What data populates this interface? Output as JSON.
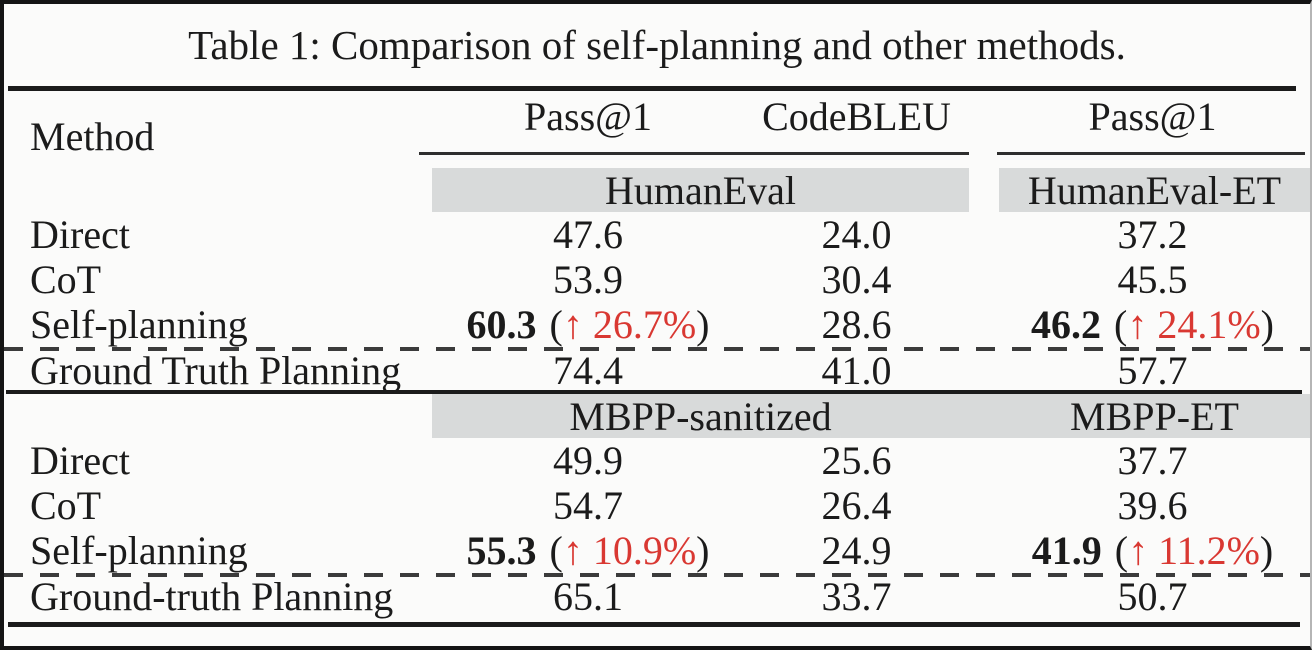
{
  "caption": "Table 1: Comparison of self-planning and other methods.",
  "header": {
    "method": "Method",
    "metric1": "Pass@1",
    "metric2": "CodeBLEU",
    "metric3": "Pass@1"
  },
  "symbols": {
    "paren_open": "(",
    "paren_close": ")"
  },
  "colors": {
    "accent_red": "#d93832",
    "band_gray": "#d8dada",
    "rule_black": "#1b1b1b"
  },
  "sections": [
    {
      "benchmark_left": "HumanEval",
      "benchmark_right": "HumanEval-ET",
      "rows": [
        {
          "method": "Direct",
          "pass1": "47.6",
          "codebleu": "24.0",
          "pass1_et": "37.2"
        },
        {
          "method": "CoT",
          "pass1": "53.9",
          "codebleu": "30.4",
          "pass1_et": "45.5"
        },
        {
          "method": "Self-planning",
          "pass1": "60.3",
          "pass1_gain": "↑ 26.7%",
          "codebleu": "28.6",
          "pass1_et": "46.2",
          "pass1_et_gain": "↑ 24.1%"
        },
        {
          "method": "Ground Truth Planning",
          "pass1": "74.4",
          "codebleu": "41.0",
          "pass1_et": "57.7"
        }
      ]
    },
    {
      "benchmark_left": "MBPP-sanitized",
      "benchmark_right": "MBPP-ET",
      "rows": [
        {
          "method": "Direct",
          "pass1": "49.9",
          "codebleu": "25.6",
          "pass1_et": "37.7"
        },
        {
          "method": "CoT",
          "pass1": "54.7",
          "codebleu": "26.4",
          "pass1_et": "39.6"
        },
        {
          "method": "Self-planning",
          "pass1": "55.3",
          "pass1_gain": "↑ 10.9%",
          "codebleu": "24.9",
          "pass1_et": "41.9",
          "pass1_et_gain": "↑ 11.2%"
        },
        {
          "method": "Ground-truth Planning",
          "pass1": "65.1",
          "codebleu": "33.7",
          "pass1_et": "50.7"
        }
      ]
    }
  ]
}
